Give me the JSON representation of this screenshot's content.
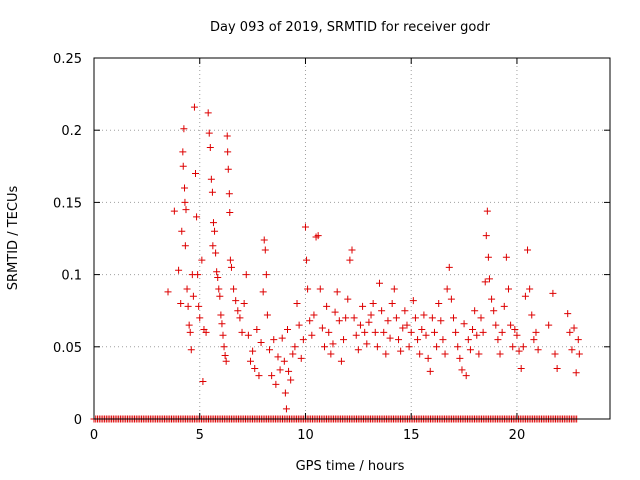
{
  "chart_data": {
    "type": "scatter",
    "title": "Day 093 of 2019, SRMTID for receiver godr",
    "xlabel": "GPS time / hours",
    "ylabel": "SRMTID / TECUs",
    "xlim": [
      0,
      24.4
    ],
    "ylim": [
      0,
      0.25
    ],
    "xticks": [
      0,
      5,
      10,
      15,
      20
    ],
    "yticks": [
      0,
      0.05,
      0.1,
      0.15,
      0.2,
      0.25
    ],
    "xtick_labels": [
      "0",
      "5",
      "10",
      "15",
      "20"
    ],
    "ytick_labels": [
      "0",
      "0.05",
      "0.1",
      "0.15",
      "0.2",
      "0.25"
    ],
    "grid": true,
    "marker": "+",
    "color": "#dd0000",
    "series": [
      {
        "name": "SRMTID",
        "points": [
          [
            3.5,
            0.088
          ],
          [
            3.8,
            0.144
          ],
          [
            4.0,
            0.103
          ],
          [
            4.1,
            0.08
          ],
          [
            4.15,
            0.13
          ],
          [
            4.2,
            0.185
          ],
          [
            4.22,
            0.175
          ],
          [
            4.25,
            0.201
          ],
          [
            4.28,
            0.16
          ],
          [
            4.3,
            0.15
          ],
          [
            4.32,
            0.12
          ],
          [
            4.35,
            0.145
          ],
          [
            4.4,
            0.09
          ],
          [
            4.45,
            0.078
          ],
          [
            4.5,
            0.065
          ],
          [
            4.55,
            0.06
          ],
          [
            4.6,
            0.048
          ],
          [
            4.65,
            0.1
          ],
          [
            4.7,
            0.085
          ],
          [
            4.75,
            0.216
          ],
          [
            4.8,
            0.17
          ],
          [
            4.85,
            0.14
          ],
          [
            4.9,
            0.1
          ],
          [
            4.95,
            0.078
          ],
          [
            5.0,
            0.07
          ],
          [
            5.1,
            0.11
          ],
          [
            5.15,
            0.026
          ],
          [
            5.2,
            0.062
          ],
          [
            5.3,
            0.06
          ],
          [
            5.4,
            0.212
          ],
          [
            5.45,
            0.198
          ],
          [
            5.5,
            0.188
          ],
          [
            5.55,
            0.166
          ],
          [
            5.6,
            0.157
          ],
          [
            5.62,
            0.12
          ],
          [
            5.65,
            0.136
          ],
          [
            5.7,
            0.13
          ],
          [
            5.75,
            0.115
          ],
          [
            5.8,
            0.102
          ],
          [
            5.85,
            0.098
          ],
          [
            5.9,
            0.09
          ],
          [
            5.95,
            0.085
          ],
          [
            6.0,
            0.072
          ],
          [
            6.05,
            0.066
          ],
          [
            6.1,
            0.058
          ],
          [
            6.15,
            0.05
          ],
          [
            6.2,
            0.044
          ],
          [
            6.25,
            0.04
          ],
          [
            6.3,
            0.196
          ],
          [
            6.32,
            0.185
          ],
          [
            6.35,
            0.173
          ],
          [
            6.4,
            0.156
          ],
          [
            6.42,
            0.143
          ],
          [
            6.45,
            0.11
          ],
          [
            6.5,
            0.105
          ],
          [
            6.6,
            0.09
          ],
          [
            6.7,
            0.082
          ],
          [
            6.8,
            0.075
          ],
          [
            6.9,
            0.07
          ],
          [
            7.0,
            0.06
          ],
          [
            7.1,
            0.08
          ],
          [
            7.2,
            0.1
          ],
          [
            7.3,
            0.058
          ],
          [
            7.4,
            0.04
          ],
          [
            7.5,
            0.047
          ],
          [
            7.6,
            0.035
          ],
          [
            7.7,
            0.062
          ],
          [
            7.8,
            0.03
          ],
          [
            7.9,
            0.053
          ],
          [
            8.0,
            0.088
          ],
          [
            8.05,
            0.124
          ],
          [
            8.1,
            0.117
          ],
          [
            8.15,
            0.1
          ],
          [
            8.2,
            0.072
          ],
          [
            8.3,
            0.048
          ],
          [
            8.4,
            0.03
          ],
          [
            8.5,
            0.055
          ],
          [
            8.6,
            0.024
          ],
          [
            8.7,
            0.043
          ],
          [
            8.8,
            0.034
          ],
          [
            8.9,
            0.056
          ],
          [
            9.0,
            0.04
          ],
          [
            9.05,
            0.018
          ],
          [
            9.1,
            0.007
          ],
          [
            9.15,
            0.062
          ],
          [
            9.2,
            0.033
          ],
          [
            9.3,
            0.027
          ],
          [
            9.4,
            0.045
          ],
          [
            9.5,
            0.05
          ],
          [
            9.6,
            0.08
          ],
          [
            9.7,
            0.065
          ],
          [
            9.8,
            0.042
          ],
          [
            9.9,
            0.055
          ],
          [
            10.0,
            0.133
          ],
          [
            10.05,
            0.11
          ],
          [
            10.1,
            0.09
          ],
          [
            10.2,
            0.068
          ],
          [
            10.3,
            0.058
          ],
          [
            10.4,
            0.072
          ],
          [
            10.5,
            0.126
          ],
          [
            10.6,
            0.127
          ],
          [
            10.7,
            0.09
          ],
          [
            10.8,
            0.063
          ],
          [
            10.9,
            0.05
          ],
          [
            11.0,
            0.078
          ],
          [
            11.1,
            0.06
          ],
          [
            11.2,
            0.045
          ],
          [
            11.3,
            0.052
          ],
          [
            11.4,
            0.074
          ],
          [
            11.5,
            0.088
          ],
          [
            11.6,
            0.068
          ],
          [
            11.7,
            0.04
          ],
          [
            11.8,
            0.055
          ],
          [
            11.9,
            0.07
          ],
          [
            12.0,
            0.083
          ],
          [
            12.1,
            0.11
          ],
          [
            12.2,
            0.117
          ],
          [
            12.3,
            0.07
          ],
          [
            12.4,
            0.058
          ],
          [
            12.5,
            0.048
          ],
          [
            12.6,
            0.065
          ],
          [
            12.7,
            0.078
          ],
          [
            12.8,
            0.06
          ],
          [
            12.9,
            0.052
          ],
          [
            13.0,
            0.067
          ],
          [
            13.1,
            0.072
          ],
          [
            13.2,
            0.08
          ],
          [
            13.3,
            0.06
          ],
          [
            13.4,
            0.05
          ],
          [
            13.5,
            0.094
          ],
          [
            13.6,
            0.075
          ],
          [
            13.7,
            0.06
          ],
          [
            13.8,
            0.045
          ],
          [
            13.9,
            0.068
          ],
          [
            14.0,
            0.056
          ],
          [
            14.1,
            0.08
          ],
          [
            14.2,
            0.09
          ],
          [
            14.3,
            0.07
          ],
          [
            14.4,
            0.055
          ],
          [
            14.5,
            0.047
          ],
          [
            14.6,
            0.063
          ],
          [
            14.7,
            0.075
          ],
          [
            14.8,
            0.065
          ],
          [
            14.9,
            0.05
          ],
          [
            15.0,
            0.06
          ],
          [
            15.1,
            0.082
          ],
          [
            15.2,
            0.07
          ],
          [
            15.3,
            0.055
          ],
          [
            15.4,
            0.045
          ],
          [
            15.5,
            0.062
          ],
          [
            15.6,
            0.072
          ],
          [
            15.7,
            0.058
          ],
          [
            15.8,
            0.042
          ],
          [
            15.9,
            0.033
          ],
          [
            16.0,
            0.07
          ],
          [
            16.1,
            0.06
          ],
          [
            16.2,
            0.05
          ],
          [
            16.3,
            0.08
          ],
          [
            16.4,
            0.068
          ],
          [
            16.5,
            0.055
          ],
          [
            16.6,
            0.045
          ],
          [
            16.7,
            0.09
          ],
          [
            16.8,
            0.105
          ],
          [
            16.9,
            0.083
          ],
          [
            17.0,
            0.07
          ],
          [
            17.1,
            0.06
          ],
          [
            17.2,
            0.05
          ],
          [
            17.3,
            0.042
          ],
          [
            17.4,
            0.034
          ],
          [
            17.5,
            0.066
          ],
          [
            17.6,
            0.03
          ],
          [
            17.7,
            0.055
          ],
          [
            17.8,
            0.048
          ],
          [
            17.9,
            0.062
          ],
          [
            18.0,
            0.075
          ],
          [
            18.1,
            0.058
          ],
          [
            18.2,
            0.045
          ],
          [
            18.3,
            0.07
          ],
          [
            18.4,
            0.06
          ],
          [
            18.5,
            0.095
          ],
          [
            18.55,
            0.127
          ],
          [
            18.6,
            0.144
          ],
          [
            18.65,
            0.112
          ],
          [
            18.7,
            0.097
          ],
          [
            18.8,
            0.083
          ],
          [
            18.9,
            0.075
          ],
          [
            19.0,
            0.065
          ],
          [
            19.1,
            0.055
          ],
          [
            19.2,
            0.045
          ],
          [
            19.3,
            0.06
          ],
          [
            19.4,
            0.078
          ],
          [
            19.5,
            0.112
          ],
          [
            19.6,
            0.09
          ],
          [
            19.7,
            0.065
          ],
          [
            19.8,
            0.05
          ],
          [
            19.9,
            0.062
          ],
          [
            20.0,
            0.058
          ],
          [
            20.1,
            0.047
          ],
          [
            20.2,
            0.035
          ],
          [
            20.3,
            0.05
          ],
          [
            20.4,
            0.085
          ],
          [
            20.5,
            0.117
          ],
          [
            20.6,
            0.09
          ],
          [
            20.7,
            0.072
          ],
          [
            20.8,
            0.055
          ],
          [
            20.9,
            0.06
          ],
          [
            21.0,
            0.048
          ],
          [
            21.5,
            0.065
          ],
          [
            21.7,
            0.087
          ],
          [
            21.8,
            0.045
          ],
          [
            21.9,
            0.035
          ],
          [
            22.4,
            0.073
          ],
          [
            22.5,
            0.06
          ],
          [
            22.6,
            0.048
          ],
          [
            22.7,
            0.063
          ],
          [
            22.8,
            0.032
          ],
          [
            22.9,
            0.055
          ],
          [
            22.95,
            0.045
          ]
        ]
      }
    ],
    "baseline_zero_band": [
      0,
      22.9
    ]
  }
}
